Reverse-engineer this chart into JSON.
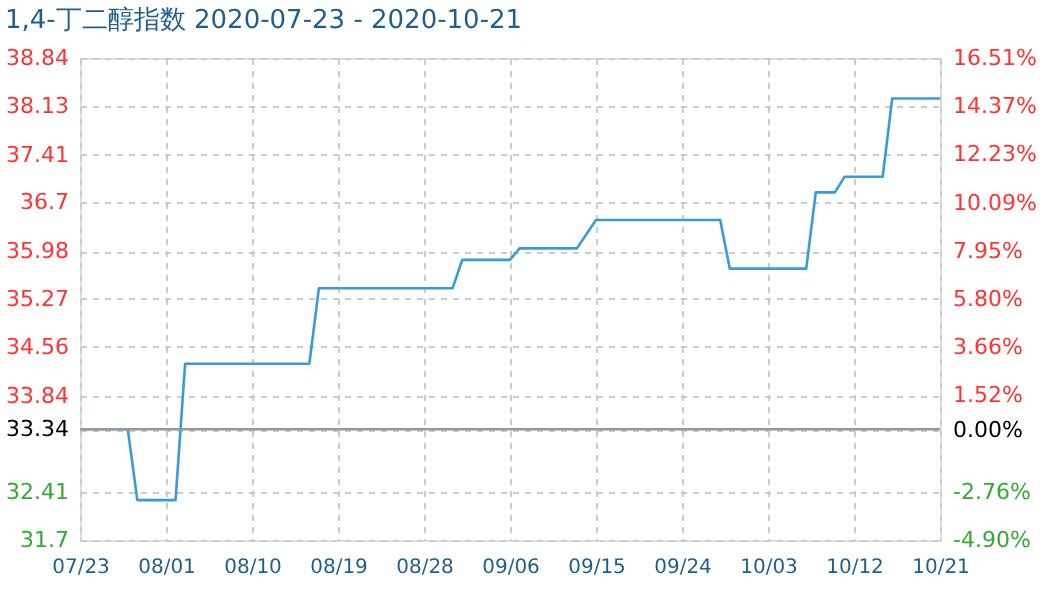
{
  "chart_data": {
    "type": "line",
    "title": "1,4-丁二醇指数 2020-07-23 - 2020-10-21",
    "series": [
      {
        "color": "#3a9ad9",
        "x": [
          "2020-07-23",
          "2020-07-28",
          "2020-07-29",
          "2020-08-02",
          "2020-08-03",
          "2020-08-16",
          "2020-08-17",
          "2020-08-31",
          "2020-09-01",
          "2020-09-06",
          "2020-09-07",
          "2020-09-13",
          "2020-09-15",
          "2020-09-28",
          "2020-09-29",
          "2020-10-07",
          "2020-10-08",
          "2020-10-10",
          "2020-10-11",
          "2020-10-15",
          "2020-10-16",
          "2020-10-21"
        ],
        "values": [
          33.34,
          33.34,
          32.29,
          32.29,
          34.31,
          34.31,
          35.43,
          35.43,
          35.85,
          35.85,
          36.02,
          36.02,
          36.44,
          36.44,
          35.72,
          35.72,
          36.85,
          36.85,
          37.08,
          37.08,
          38.24,
          38.24
        ]
      }
    ],
    "xlim": [
      "2020-07-23",
      "2020-10-21"
    ],
    "xticks": [
      {
        "value": "2020-07-23",
        "label": "07/23"
      },
      {
        "value": "2020-08-01",
        "label": "08/01"
      },
      {
        "value": "2020-08-10",
        "label": "08/10"
      },
      {
        "value": "2020-08-19",
        "label": "08/19"
      },
      {
        "value": "2020-08-28",
        "label": "08/28"
      },
      {
        "value": "2020-09-06",
        "label": "09/06"
      },
      {
        "value": "2020-09-15",
        "label": "09/15"
      },
      {
        "value": "2020-09-24",
        "label": "09/24"
      },
      {
        "value": "2020-10-03",
        "label": "10/03"
      },
      {
        "value": "2020-10-12",
        "label": "10/12"
      },
      {
        "value": "2020-10-21",
        "label": "10/21"
      }
    ],
    "ylim": [
      31.7,
      38.84
    ],
    "yticks": [
      31.7,
      32.41,
      33.34,
      33.84,
      34.56,
      35.27,
      35.98,
      36.7,
      37.41,
      38.13,
      38.84
    ],
    "y2lim": [
      -4.9,
      16.51
    ],
    "y2ticks": [
      {
        "value": -4.9,
        "label": "-4.90%"
      },
      {
        "value": -2.76,
        "label": "-2.76%"
      },
      {
        "value": 0,
        "label": "0.00%"
      },
      {
        "value": 1.52,
        "label": "1.52%"
      },
      {
        "value": 3.66,
        "label": "3.66%"
      },
      {
        "value": 5.8,
        "label": "5.80%"
      },
      {
        "value": 7.95,
        "label": "7.95%"
      },
      {
        "value": 10.09,
        "label": "10.09%"
      },
      {
        "value": 12.23,
        "label": "12.23%"
      },
      {
        "value": 14.37,
        "label": "14.37%"
      },
      {
        "value": 16.51,
        "label": "16.51%"
      }
    ],
    "ref_lines": [
      {
        "axis": "y",
        "value": 33.34,
        "color": "#999999"
      }
    ],
    "grid": true,
    "marker": "none",
    "line_style": "solid"
  }
}
